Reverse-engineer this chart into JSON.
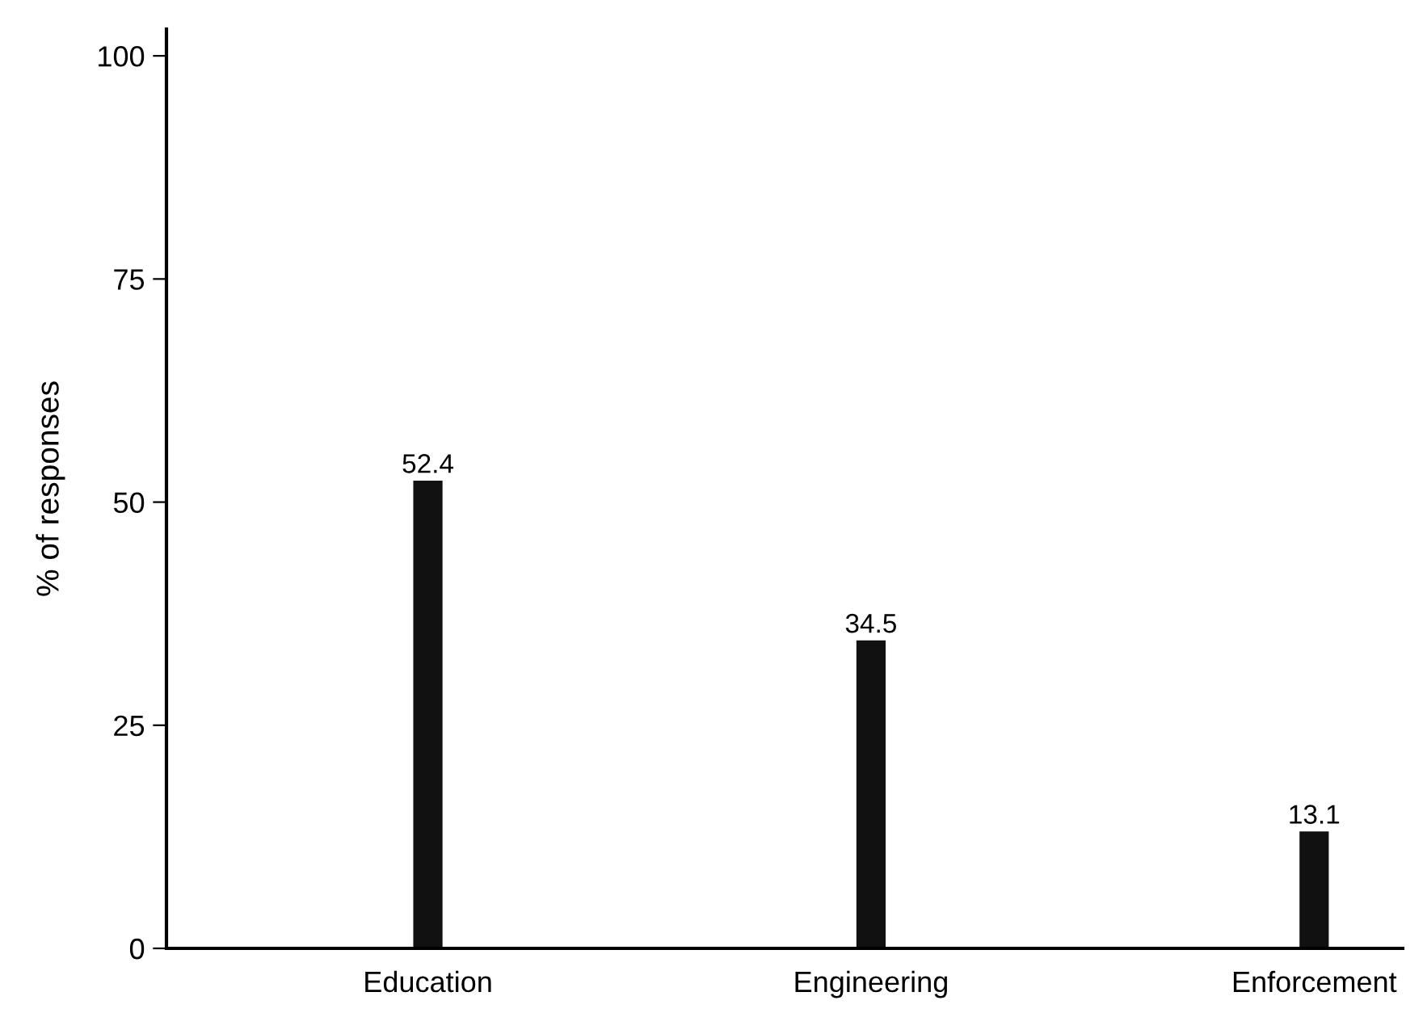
{
  "chart_data": {
    "type": "bar",
    "ylabel": "% of responses",
    "categories": [
      "Education",
      "Engineering",
      "Enforcement"
    ],
    "values": [
      52.4,
      34.5,
      13.1
    ],
    "color": "#111111",
    "data_labels": true,
    "ylim": [
      0,
      103
    ],
    "yticks": [
      0,
      25,
      50,
      75,
      100
    ],
    "grid": false
  }
}
